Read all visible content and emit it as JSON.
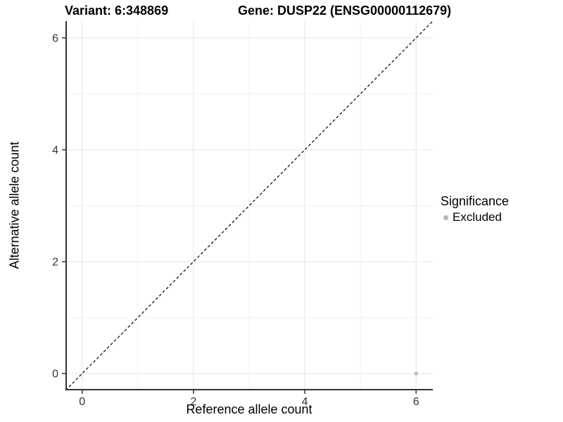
{
  "title": {
    "variant": "Variant: 6:348869",
    "gene": "Gene: DUSP22 (ENSG00000112679)"
  },
  "legend": {
    "title": "Significance",
    "items": [
      {
        "label": "Excluded",
        "color": "#b8b8b8"
      }
    ]
  },
  "chart_data": {
    "type": "scatter",
    "title": "Variant: 6:348869    Gene: DUSP22 (ENSG00000112679)",
    "xlabel": "Reference allele count",
    "ylabel": "Alternative allele count",
    "xlim": [
      -0.3,
      6.3
    ],
    "ylim": [
      -0.3,
      6.3
    ],
    "xticks": [
      0,
      2,
      4,
      6
    ],
    "yticks": [
      0,
      2,
      4,
      6
    ],
    "grid": true,
    "legend_position": "right",
    "series": [
      {
        "name": "Excluded",
        "color": "#b8b8b8",
        "points": [
          {
            "x": 6,
            "y": 0
          }
        ]
      }
    ],
    "reference_line": {
      "kind": "identity",
      "slope": 1,
      "intercept": 0,
      "style": "dashed",
      "color": "#000000"
    }
  },
  "colors": {
    "background": "#ffffff",
    "grid_major": "#e5e5e5",
    "grid_minor": "#f2f2f2",
    "axis_line": "#333333",
    "tick_text": "#333333",
    "title_text": "#000000"
  }
}
